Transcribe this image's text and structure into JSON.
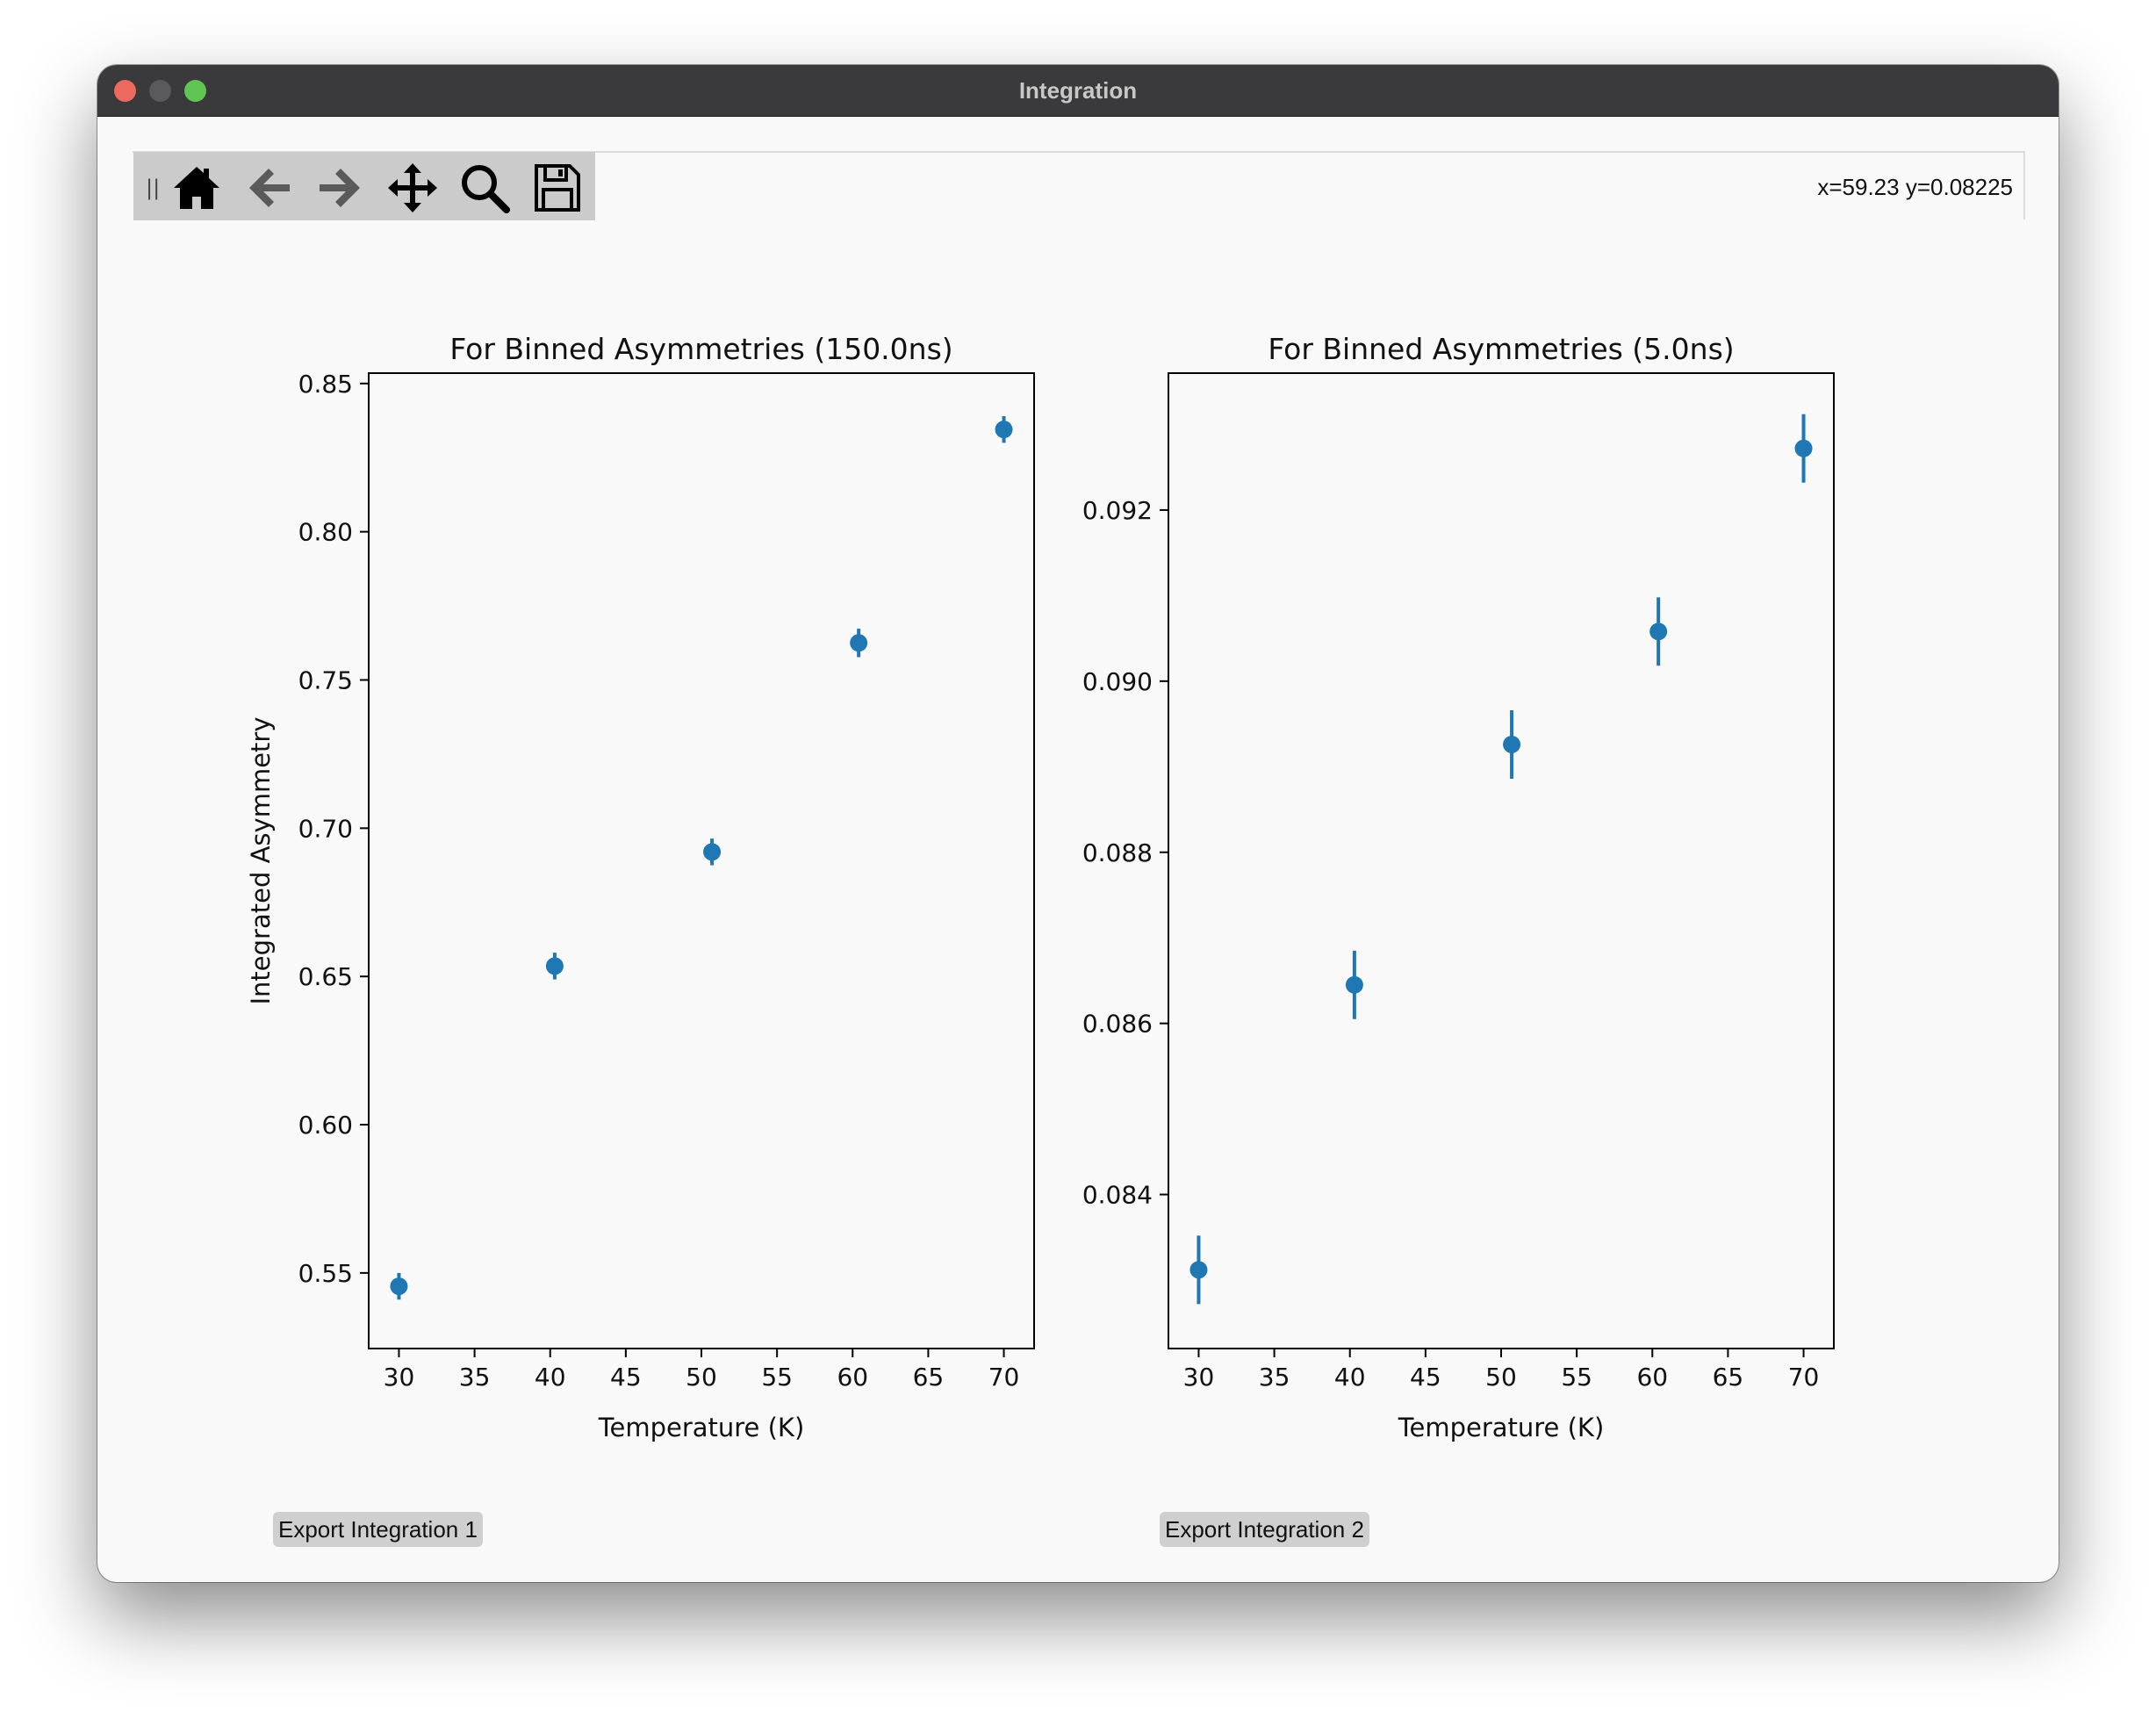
{
  "window": {
    "title": "Integration"
  },
  "toolbar": {
    "buttons": [
      {
        "icon": "home-icon"
      },
      {
        "icon": "back-arrow-icon"
      },
      {
        "icon": "forward-arrow-icon"
      },
      {
        "icon": "pan-icon"
      },
      {
        "icon": "zoom-icon"
      },
      {
        "icon": "save-icon"
      }
    ],
    "coordinates": "x=59.23 y=0.08225"
  },
  "buttons": {
    "export1": "Export Integration 1",
    "export2": "Export Integration 2"
  },
  "colors": {
    "marker": "#1f77b4",
    "axes": "#000000",
    "plot_bg": "#f9f9fa"
  },
  "chart_data": [
    {
      "type": "scatter",
      "title": "For Binned Asymmetries (150.0ns)",
      "xlabel": "Temperature (K)",
      "ylabel": "Integrated Asymmetry",
      "xlim": [
        28,
        72
      ],
      "ylim": [
        0.5245,
        0.8535
      ],
      "xticks": [
        30,
        35,
        40,
        45,
        50,
        55,
        60,
        65,
        70
      ],
      "yticks": [
        0.55,
        0.6,
        0.65,
        0.7,
        0.75,
        0.8,
        0.85
      ],
      "ytick_labels": [
        "0.55",
        "0.60",
        "0.65",
        "0.70",
        "0.75",
        "0.80",
        "0.85"
      ],
      "x": [
        30,
        40.3,
        50.7,
        60.4,
        70
      ],
      "y": [
        0.5455,
        0.6535,
        0.692,
        0.7625,
        0.8345
      ],
      "yerr": [
        0.0045,
        0.0045,
        0.0045,
        0.0048,
        0.0045
      ],
      "grid": false,
      "marker": "circle-with-errorbar"
    },
    {
      "type": "scatter",
      "title": "For Binned Asymmetries (5.0ns)",
      "xlabel": "Temperature (K)",
      "ylabel": "",
      "xlim": [
        28,
        72
      ],
      "ylim": [
        0.0822,
        0.0936
      ],
      "xticks": [
        30,
        35,
        40,
        45,
        50,
        55,
        60,
        65,
        70
      ],
      "yticks": [
        0.084,
        0.086,
        0.088,
        0.09,
        0.092
      ],
      "ytick_labels": [
        "0.084",
        "0.086",
        "0.088",
        "0.090",
        "0.092"
      ],
      "x": [
        30,
        40.3,
        50.7,
        60.4,
        70
      ],
      "y": [
        0.08312,
        0.08645,
        0.08926,
        0.09058,
        0.09272
      ],
      "yerr": [
        0.0004,
        0.0004,
        0.0004,
        0.0004,
        0.0004
      ],
      "grid": false,
      "marker": "circle-with-errorbar"
    }
  ]
}
